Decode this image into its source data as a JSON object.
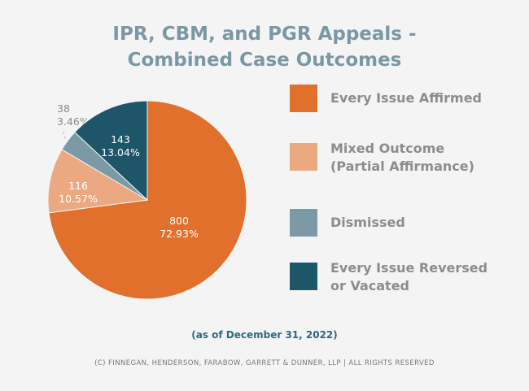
{
  "title_line1": "IPR, CBM, and PGR Appeals -",
  "title_line2": "Combined Case Outcomes",
  "as_of": "(as of December 31, 2022)",
  "copyright": "(C) FINNEGAN, HENDERSON, FARABOW, GARRETT & DUNNER, LLP | ALL RIGHTS RESERVED",
  "chart_data": {
    "type": "pie",
    "title": "IPR, CBM, and PGR Appeals - Combined Case Outcomes",
    "slices": [
      {
        "name": "Every Issue Affirmed",
        "value": 800,
        "percent": "72.93%",
        "color": "#e0702b",
        "label_color": "#ffffff"
      },
      {
        "name": "Mixed Outcome (Partial Affirmance)",
        "value": 116,
        "percent": "10.57%",
        "color": "#eba982",
        "label_color": "#ffffff"
      },
      {
        "name": "Dismissed",
        "value": 38,
        "percent": "3.46%",
        "color": "#7c9aa5",
        "label_color": "#8a8a8a"
      },
      {
        "name": "Every Issue Reversed or Vacated",
        "value": 143,
        "percent": "13.04%",
        "color": "#1e5669",
        "label_color": "#ffffff"
      }
    ],
    "legend": [
      {
        "lines": [
          "Every Issue Affirmed"
        ],
        "color": "#e0702b"
      },
      {
        "lines": [
          "Mixed Outcome",
          "(Partial Affirmance)"
        ],
        "color": "#eba982"
      },
      {
        "lines": [
          "Dismissed"
        ],
        "color": "#7c9aa5"
      },
      {
        "lines": [
          "Every Issue Reversed",
          "or Vacated"
        ],
        "color": "#1e5669"
      }
    ],
    "legend_placement": "right",
    "start_angle_deg": 0,
    "direction": "clockwise"
  }
}
